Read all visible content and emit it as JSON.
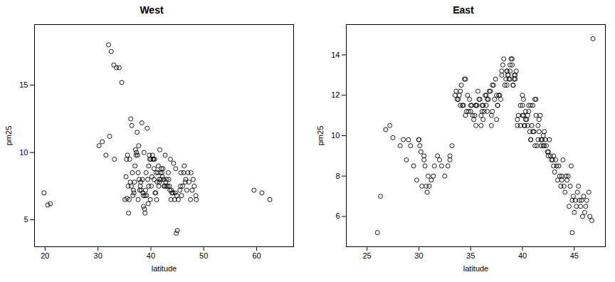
{
  "chart_data": [
    {
      "type": "scatter",
      "title": "West",
      "xlabel": "latitude",
      "ylabel": "pm25",
      "x": [
        19.8,
        20.5,
        21.0,
        30.2,
        30.8,
        31.5,
        32.2,
        33.1,
        32.0,
        32.5,
        33.0,
        33.5,
        34.0,
        34.5,
        35.1,
        35.3,
        35.5,
        35.6,
        35.8,
        36.0,
        36.1,
        36.3,
        36.5,
        36.6,
        36.8,
        37.0,
        37.1,
        37.2,
        37.3,
        37.5,
        37.6,
        37.8,
        38.0,
        38.1,
        38.2,
        38.4,
        38.5,
        38.6,
        38.8,
        38.9,
        39.0,
        39.1,
        39.2,
        39.4,
        39.5,
        39.6,
        39.8,
        40.0,
        40.1,
        40.2,
        40.3,
        40.5,
        40.6,
        40.8,
        41.0,
        41.1,
        41.2,
        41.3,
        41.5,
        41.6,
        41.8,
        42.0,
        42.1,
        42.2,
        42.4,
        42.5,
        42.8,
        43.0,
        43.2,
        43.4,
        43.5,
        43.8,
        44.0,
        44.2,
        44.5,
        44.8,
        45.0,
        45.2,
        45.5,
        45.8,
        46.0,
        46.2,
        46.5,
        46.8,
        47.0,
        47.2,
        47.5,
        47.8,
        48.0,
        48.2,
        48.5,
        36.2,
        36.4,
        37.4,
        38.3,
        39.3,
        40.4,
        41.4,
        42.3,
        43.3,
        44.3,
        37.7,
        38.7,
        39.7,
        40.7,
        41.7,
        42.7,
        43.7,
        44.7,
        45.7,
        46.3,
        35.9,
        36.9,
        37.9,
        38.9,
        39.9,
        40.9,
        41.9,
        42.9,
        43.9,
        44.9,
        35.4,
        35.7,
        36.7,
        37.6,
        38.6,
        39.6,
        40.6,
        41.6,
        42.6,
        43.6,
        44.6,
        45.6,
        46.6,
        47.6,
        48.6,
        59.5,
        61.0,
        62.5
      ],
      "values": [
        7.0,
        6.1,
        6.2,
        10.5,
        10.8,
        9.8,
        11.2,
        9.5,
        18.0,
        17.5,
        16.5,
        16.3,
        16.3,
        15.2,
        6.5,
        8.2,
        6.6,
        9.8,
        5.5,
        9.5,
        7.8,
        7.5,
        8.5,
        6.8,
        7.0,
        9.0,
        10.2,
        9.8,
        10.0,
        9.8,
        8.5,
        8.0,
        7.5,
        7.8,
        7.2,
        8.0,
        7.0,
        6.0,
        5.8,
        5.5,
        7.2,
        8.5,
        6.8,
        8.0,
        6.2,
        9.0,
        9.5,
        9.5,
        7.5,
        8.2,
        9.8,
        9.5,
        8.8,
        7.0,
        8.5,
        6.5,
        7.8,
        8.5,
        7.5,
        8.0,
        8.5,
        8.8,
        8.5,
        8.2,
        8.0,
        7.5,
        7.8,
        8.0,
        7.5,
        8.0,
        7.5,
        6.5,
        7.0,
        7.0,
        6.5,
        4.0,
        4.2,
        6.5,
        7.2,
        6.8,
        7.5,
        8.5,
        7.8,
        7.2,
        8.5,
        7.8,
        6.5,
        7.2,
        8.0,
        7.5,
        6.8,
        12.5,
        12.0,
        11.5,
        12.2,
        11.8,
        9.5,
        9.0,
        8.8,
        8.5,
        9.2,
        10.5,
        10.0,
        9.8,
        9.5,
        10.2,
        9.8,
        9.5,
        8.8,
        8.5,
        9.0,
        6.5,
        7.8,
        7.2,
        6.8,
        6.5,
        7.0,
        8.0,
        7.5,
        7.2,
        6.8,
        9.5,
        7.5,
        7.2,
        6.5,
        6.8,
        7.5,
        8.0,
        7.8,
        7.5,
        7.2,
        7.0,
        7.5,
        8.0,
        8.5,
        6.5,
        7.2,
        7.0,
        6.5
      ],
      "xlim": [
        18,
        67
      ],
      "ylim": [
        3.0,
        19.5
      ],
      "xticks": [
        20,
        30,
        40,
        50,
        60
      ],
      "yticks": [
        5,
        10,
        15
      ],
      "color": "#000000",
      "marker": "circle"
    },
    {
      "type": "scatter",
      "title": "East",
      "xlabel": "latitude",
      "ylabel": "pm25",
      "x": [
        26.0,
        26.3,
        26.8,
        27.2,
        27.5,
        28.2,
        28.5,
        28.8,
        29.0,
        29.2,
        29.5,
        29.8,
        30.0,
        30.0,
        30.1,
        30.2,
        30.3,
        30.5,
        30.5,
        30.6,
        30.7,
        30.8,
        30.9,
        31.0,
        31.2,
        31.4,
        31.5,
        31.8,
        32.0,
        32.2,
        32.5,
        32.8,
        33.0,
        33.0,
        33.2,
        33.5,
        33.8,
        34.0,
        34.0,
        34.2,
        34.5,
        34.5,
        34.8,
        35.0,
        35.0,
        35.2,
        35.3,
        35.5,
        35.5,
        35.5,
        35.6,
        35.8,
        36.0,
        36.0,
        36.1,
        36.2,
        36.2,
        36.3,
        36.5,
        36.5,
        36.6,
        36.8,
        37.0,
        37.0,
        37.1,
        37.2,
        37.3,
        37.5,
        37.5,
        37.6,
        37.8,
        38.0,
        38.0,
        38.1,
        38.2,
        38.3,
        38.4,
        38.5,
        38.5,
        38.6,
        38.8,
        38.8,
        39.0,
        39.0,
        39.1,
        39.2,
        39.3,
        39.5,
        39.5,
        39.6,
        39.8,
        39.8,
        40.0,
        40.0,
        40.0,
        40.1,
        40.2,
        40.3,
        40.5,
        40.5,
        40.6,
        40.8,
        40.8,
        41.0,
        41.0,
        41.2,
        41.2,
        41.3,
        41.5,
        41.5,
        41.6,
        41.8,
        41.8,
        42.0,
        42.0,
        42.1,
        42.2,
        42.3,
        42.5,
        42.5,
        42.8,
        43.0,
        43.0,
        43.2,
        43.5,
        43.8,
        43.8,
        44.0,
        44.2,
        44.5,
        44.8,
        44.8,
        45.0,
        45.2,
        45.5,
        45.8,
        38.5,
        38.6,
        38.7,
        38.8,
        38.9,
        39.1,
        39.2,
        39.3,
        39.4,
        40.1,
        40.2,
        40.3,
        40.4,
        40.6,
        40.7,
        40.8,
        40.9,
        41.1,
        41.3,
        41.4,
        41.6,
        41.7,
        41.9,
        42.1,
        42.4,
        42.6,
        42.7,
        42.9,
        33.6,
        33.7,
        33.9,
        34.1,
        34.3,
        34.4,
        34.6,
        34.7,
        34.9,
        35.1,
        35.4,
        35.7,
        35.9,
        36.1,
        36.4,
        36.6,
        36.7,
        36.9,
        37.1,
        37.4,
        37.6,
        37.7,
        37.9,
        43.1,
        43.3,
        43.4,
        43.6,
        43.7,
        43.9,
        44.1,
        44.3,
        44.4,
        44.6,
        44.7,
        44.9,
        45.1,
        45.3,
        45.4,
        45.6,
        45.7,
        45.9,
        46.0,
        46.1,
        46.2,
        46.4,
        46.5,
        46.7,
        46.8
      ],
      "values": [
        5.2,
        7.0,
        10.3,
        10.5,
        9.9,
        9.5,
        9.8,
        8.8,
        9.8,
        9.5,
        8.5,
        7.8,
        9.8,
        9.8,
        9.5,
        9.2,
        7.5,
        9.0,
        8.8,
        8.5,
        7.5,
        7.2,
        8.0,
        7.5,
        7.8,
        8.0,
        8.5,
        9.0,
        8.8,
        8.5,
        8.0,
        8.5,
        9.0,
        8.8,
        9.5,
        12.0,
        11.8,
        11.5,
        12.2,
        11.5,
        12.8,
        11.0,
        11.2,
        11.5,
        11.2,
        11.0,
        10.8,
        11.5,
        11.5,
        10.5,
        11.5,
        11.8,
        10.5,
        11.0,
        11.2,
        11.5,
        10.8,
        11.2,
        11.5,
        12.0,
        11.8,
        12.2,
        10.5,
        11.0,
        11.2,
        12.5,
        11.8,
        12.0,
        10.8,
        11.5,
        12.0,
        13.0,
        13.2,
        13.5,
        13.8,
        12.5,
        12.8,
        13.2,
        12.5,
        13.0,
        12.8,
        13.2,
        13.5,
        13.8,
        12.5,
        12.8,
        13.0,
        10.5,
        10.8,
        11.0,
        11.5,
        10.5,
        11.0,
        11.5,
        12.0,
        11.8,
        10.5,
        10.8,
        11.0,
        10.5,
        11.2,
        11.5,
        9.8,
        10.2,
        11.5,
        11.8,
        9.5,
        11.0,
        10.5,
        9.8,
        10.2,
        9.5,
        9.8,
        9.5,
        10.0,
        10.2,
        9.8,
        9.5,
        9.0,
        9.2,
        8.8,
        8.5,
        9.0,
        8.8,
        8.5,
        8.0,
        7.8,
        7.5,
        8.0,
        6.5,
        6.8,
        5.2,
        6.2,
        6.5,
        6.8,
        6.0,
        13.2,
        13.0,
        12.8,
        13.5,
        13.8,
        12.5,
        13.0,
        12.8,
        13.2,
        11.0,
        10.5,
        11.2,
        10.8,
        11.5,
        10.2,
        9.8,
        10.5,
        10.2,
        11.8,
        9.5,
        10.8,
        11.0,
        9.8,
        9.5,
        9.2,
        9.8,
        9.0,
        8.8,
        12.2,
        11.8,
        12.0,
        12.5,
        11.5,
        12.8,
        11.2,
        12.0,
        11.8,
        11.5,
        11.0,
        12.2,
        11.8,
        11.5,
        12.0,
        11.2,
        11.8,
        12.2,
        12.5,
        12.8,
        11.5,
        12.0,
        11.8,
        8.2,
        8.5,
        7.8,
        8.0,
        7.5,
        8.8,
        7.2,
        7.8,
        8.0,
        7.5,
        8.5,
        7.0,
        6.8,
        7.2,
        7.5,
        6.5,
        6.8,
        7.0,
        6.2,
        6.5,
        6.8,
        7.2,
        6.0,
        5.8,
        14.8
      ],
      "xlim": [
        23,
        48
      ],
      "ylim": [
        4.5,
        15.5
      ],
      "xticks": [
        25,
        30,
        35,
        40,
        45
      ],
      "yticks": [
        6,
        8,
        10,
        12,
        14
      ],
      "color": "#000000",
      "marker": "circle"
    }
  ]
}
